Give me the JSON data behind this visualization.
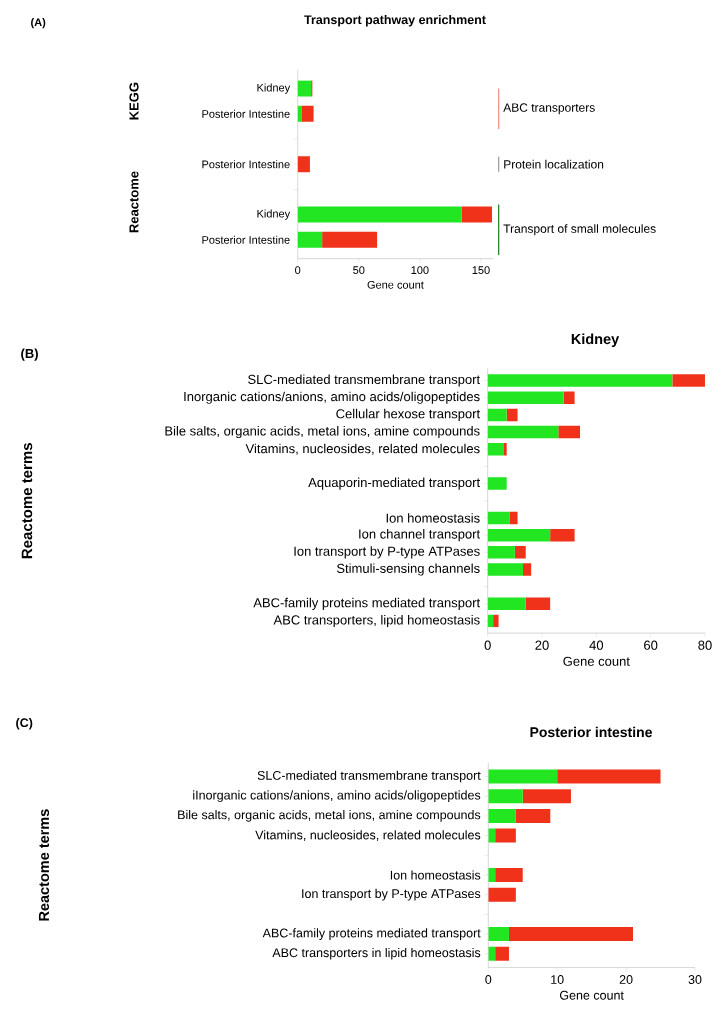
{
  "chart_data": [
    {
      "type": "bar",
      "orientation": "horizontal",
      "stacked": true,
      "title": "Transport pathway enrichment",
      "xlabel": "Gene count",
      "categories": [
        "Kidney",
        "Posterior Intestine",
        null,
        "Posterior Intestine",
        null,
        "Kidney",
        "Posterior Intestine"
      ],
      "series": [
        {
          "color": "#22e622",
          "values": [
            11,
            3,
            null,
            0,
            null,
            134,
            20
          ]
        },
        {
          "color": "#f0321a",
          "values": [
            1,
            10,
            null,
            10,
            null,
            25,
            45
          ]
        }
      ],
      "xlim": [
        0,
        160
      ],
      "xticks": [
        0,
        50,
        100,
        150
      ],
      "annotations": [
        "(A)",
        "KEGG",
        "Reactome",
        "ABC transporters",
        "Protein localization",
        "Transport of small molecules"
      ]
    },
    {
      "type": "bar",
      "orientation": "horizontal",
      "stacked": true,
      "title": "Kidney",
      "xlabel": "Gene count",
      "ylabel": "Reactome terms",
      "categories": [
        "SLC-mediated transmembrane transport",
        "Inorganic cations/anions, amino acids/oligopeptides",
        "Cellular hexose transport",
        "Bile salts, organic acids, metal ions, amine compounds",
        "Vitamins, nucleosides, related molecules",
        null,
        "Aquaporin-mediated transport",
        null,
        "Ion homeostasis",
        "Ion channel transport",
        "Ion transport by P-type ATPases",
        "Stimuli-sensing channels",
        null,
        "ABC-family proteins mediated transport",
        "ABC transporters, lipid homeostasis"
      ],
      "series": [
        {
          "color": "#22e622",
          "values": [
            68,
            28,
            7,
            26,
            6,
            null,
            7,
            null,
            8,
            23,
            10,
            13,
            null,
            14,
            2
          ]
        },
        {
          "color": "#f0321a",
          "values": [
            12,
            4,
            4,
            8,
            1,
            null,
            0,
            null,
            3,
            9,
            4,
            3,
            null,
            9,
            2
          ]
        }
      ],
      "xlim": [
        0,
        80
      ],
      "xticks": [
        0,
        20,
        40,
        60,
        80
      ],
      "annotations": [
        "(B)"
      ]
    },
    {
      "type": "bar",
      "orientation": "horizontal",
      "stacked": true,
      "title": "Posterior intestine",
      "xlabel": "Gene count",
      "ylabel": "Reactome terms",
      "categories": [
        "SLC-mediated transmembrane transport",
        "iInorganic cations/anions, amino acids/oligopeptides",
        "Bile salts, organic acids, metal ions, amine compounds",
        "Vitamins, nucleosides, related molecules",
        null,
        "Ion homeostasis",
        "Ion transport by P-type ATPases",
        null,
        "ABC-family proteins mediated transport",
        "ABC transporters in lipid homeostasis"
      ],
      "series": [
        {
          "color": "#22e622",
          "values": [
            10,
            5,
            4,
            1,
            null,
            1,
            0,
            null,
            3,
            1
          ]
        },
        {
          "color": "#f0321a",
          "values": [
            15,
            7,
            5,
            3,
            null,
            4,
            4,
            null,
            18,
            2
          ]
        }
      ],
      "xlim": [
        0,
        30
      ],
      "xticks": [
        0,
        10,
        20,
        30
      ],
      "annotations": [
        "(C)"
      ]
    }
  ]
}
